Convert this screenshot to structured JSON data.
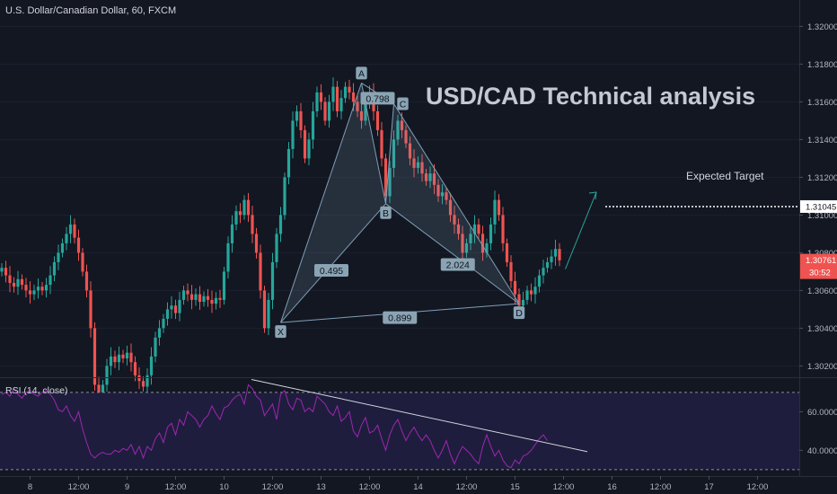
{
  "header": {
    "symbol_title": "U.S. Dollar/Canadian Dollar, 60, FXCM"
  },
  "overlay": {
    "headline": "USD/CAD Technical analysis",
    "expected_target_label": "Expected Target"
  },
  "price_axis": {
    "ticks": [
      "1.32000",
      "1.31800",
      "1.31600",
      "1.31400",
      "1.31200",
      "1.31000",
      "1.30800",
      "1.30600",
      "1.30400",
      "1.30200"
    ],
    "target_label": "1.31045",
    "last_price_label": "1.30761",
    "countdown_label": "30:52"
  },
  "rsi": {
    "title": "RSI (14, close)",
    "ticks": [
      "60.0000",
      "40.0000"
    ]
  },
  "time_axis": {
    "labels": [
      "8",
      "12:00",
      "9",
      "12:00",
      "10",
      "12:00",
      "13",
      "12:00",
      "14",
      "12:00",
      "15",
      "12:00",
      "16",
      "12:00",
      "17",
      "12:00"
    ]
  },
  "pattern": {
    "points": [
      "X",
      "A",
      "B",
      "C",
      "D"
    ],
    "ratios": {
      "xb": "0.495",
      "ac": "0.798",
      "bd": "2.024",
      "xd": "0.899"
    }
  },
  "colors": {
    "bull": "#26a69a",
    "bear": "#ef5350",
    "rsi_line": "#9c27b0",
    "pattern": "#7e9fb6",
    "last_price_bg": "#ef5350"
  },
  "chart_data": {
    "type": "candlestick",
    "title": "U.S. Dollar/Canadian Dollar, 60, FXCM",
    "ylim": [
      1.3014,
      1.3214
    ],
    "close_series": [
      1.3072,
      1.3068,
      1.3064,
      1.3062,
      1.3066,
      1.3063,
      1.306,
      1.3058,
      1.306,
      1.3062,
      1.306,
      1.3063,
      1.3068,
      1.3075,
      1.308,
      1.3085,
      1.309,
      1.3095,
      1.3088,
      1.308,
      1.307,
      1.306,
      1.304,
      1.301,
      1.3005,
      1.301,
      1.302,
      1.3025,
      1.3022,
      1.3026,
      1.3024,
      1.3027,
      1.3022,
      1.3015,
      1.3012,
      1.3009,
      1.3015,
      1.3025,
      1.3035,
      1.304,
      1.3045,
      1.305,
      1.3052,
      1.3048,
      1.3055,
      1.306,
      1.3058,
      1.3055,
      1.3058,
      1.3054,
      1.3057,
      1.3055,
      1.3053,
      1.3056,
      1.3055,
      1.307,
      1.3085,
      1.3095,
      1.3102,
      1.31,
      1.3108,
      1.31,
      1.309,
      1.308,
      1.306,
      1.304,
      1.3055,
      1.3075,
      1.309,
      1.31,
      1.312,
      1.3135,
      1.315,
      1.3155,
      1.3145,
      1.313,
      1.314,
      1.3155,
      1.3165,
      1.316,
      1.315,
      1.316,
      1.3168,
      1.3155,
      1.3162,
      1.3168,
      1.3165,
      1.316,
      1.3155,
      1.315,
      1.316,
      1.3165,
      1.3155,
      1.3145,
      1.313,
      1.311,
      1.3125,
      1.314,
      1.315,
      1.3145,
      1.3138,
      1.313,
      1.3125,
      1.3128,
      1.3122,
      1.3118,
      1.3122,
      1.3116,
      1.311,
      1.3112,
      1.3108,
      1.31,
      1.3095,
      1.309,
      1.308,
      1.3085,
      1.309,
      1.3095,
      1.309,
      1.308,
      1.3085,
      1.3095,
      1.3108,
      1.31,
      1.3085,
      1.3075,
      1.3065,
      1.3058,
      1.3052,
      1.3055,
      1.306,
      1.3058,
      1.3062,
      1.3068,
      1.3072,
      1.3075,
      1.3078,
      1.3082,
      1.3076
    ],
    "pattern_points": [
      {
        "label": "X",
        "price": 1.3043
      },
      {
        "label": "A",
        "price": 1.317
      },
      {
        "label": "B",
        "price": 1.3106
      },
      {
        "label": "C",
        "price": 1.3159
      },
      {
        "label": "D",
        "price": 1.3053
      }
    ],
    "expected_target": 1.31045,
    "last_price": 1.30761,
    "rsi": {
      "name": "RSI (14, close)",
      "ylim": [
        27.6,
        77.4
      ],
      "levels": [
        70,
        30
      ],
      "values": [
        69,
        70,
        68,
        72,
        69,
        67,
        70,
        71,
        69,
        68,
        70,
        71,
        69,
        66,
        61,
        60,
        63,
        58,
        55,
        60,
        51,
        44,
        38,
        36,
        38,
        39,
        38,
        38,
        40,
        39,
        41,
        40,
        43,
        38,
        42,
        36,
        42,
        40,
        46,
        49,
        44,
        52,
        54,
        48,
        56,
        53,
        60,
        58,
        56,
        52,
        56,
        58,
        63,
        59,
        56,
        62,
        63,
        66,
        68,
        69,
        64,
        74,
        72,
        68,
        66,
        58,
        61,
        64,
        56,
        69,
        71,
        64,
        61,
        67,
        66,
        60,
        62,
        60,
        68,
        66,
        64,
        60,
        58,
        63,
        55,
        57,
        60,
        50,
        47,
        53,
        57,
        49,
        50,
        53,
        46,
        40,
        48,
        53,
        56,
        50,
        45,
        49,
        52,
        48,
        45,
        48,
        45,
        40,
        36,
        40,
        45,
        38,
        33,
        38,
        42,
        40,
        38,
        35,
        33,
        42,
        48,
        42,
        37,
        40,
        35,
        32,
        31,
        35,
        33,
        37,
        38,
        40,
        43,
        46,
        48,
        45
      ],
      "trendline": [
        {
          "rsi": 76.7
        },
        {
          "rsi": 39.3
        }
      ]
    }
  }
}
